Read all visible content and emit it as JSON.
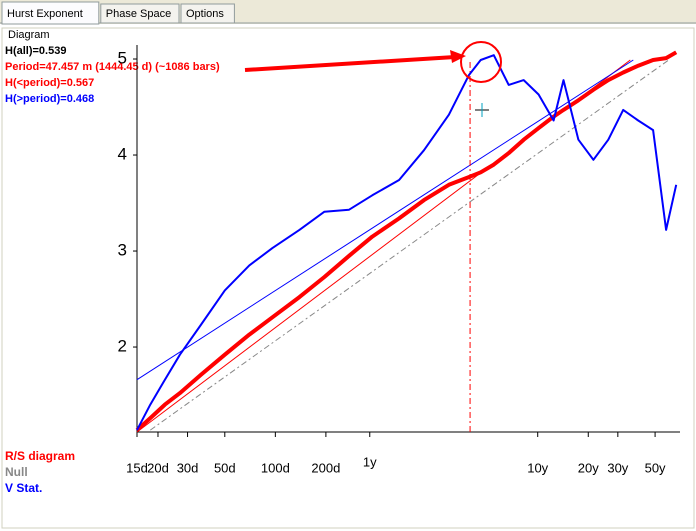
{
  "tabs": [
    "Hurst Exponent",
    "Phase Space",
    "Options"
  ],
  "group_label": "Diagram",
  "stats": [
    {
      "text": "H(all)=0.539",
      "color": "#000000"
    },
    {
      "text": "Period=47.457 m (1444.45 d) (~1086 bars)",
      "color": "#ff0000"
    },
    {
      "text": "H(<period)=0.567",
      "color": "#ff0000"
    },
    {
      "text": "H(>period)=0.468",
      "color": "#0000ff"
    }
  ],
  "chart_data": {
    "type": "line",
    "xscale": "log",
    "xlim": [
      15,
      25700
    ],
    "ylim": [
      1.115,
      5.146
    ],
    "yticks": [
      2,
      3,
      4,
      5
    ],
    "xticks": [
      15,
      20,
      30,
      50,
      100,
      200,
      {
        "value": 365,
        "label": "1y"
      },
      {
        "value": 3652,
        "label": "10y"
      },
      {
        "value": 7305,
        "label": "20y"
      },
      {
        "value": 10957,
        "label": "30y"
      },
      {
        "value": 18262,
        "label": "50y"
      }
    ],
    "xtick_labels": [
      "15d",
      "20d",
      "30d",
      "50d",
      "100d",
      "200d"
    ],
    "period_days": 1444.45,
    "x": [
      15,
      18,
      22,
      27,
      36,
      50,
      70,
      96,
      139,
      196,
      275,
      378,
      546,
      768,
      1081,
      1420,
      1672,
      2000,
      2455,
      3013,
      3698,
      4539,
      5200,
      6383,
      7834,
      9616,
      11800,
      14490,
      17780,
      21230,
      24380
    ],
    "series": [
      {
        "name": "R/S diagram",
        "color": "#ff0000",
        "width": 4,
        "values": [
          1.135,
          1.26,
          1.4,
          1.52,
          1.71,
          1.92,
          2.13,
          2.31,
          2.52,
          2.73,
          2.95,
          3.15,
          3.34,
          3.53,
          3.69,
          3.77,
          3.82,
          3.9,
          4.02,
          4.16,
          4.28,
          4.4,
          4.47,
          4.57,
          4.68,
          4.78,
          4.86,
          4.93,
          4.99,
          5.01,
          5.07
        ]
      },
      {
        "name": "V Stat.",
        "color": "#0000ff",
        "width": 2,
        "values": [
          1.135,
          1.4,
          1.66,
          1.92,
          2.23,
          2.59,
          2.85,
          3.03,
          3.22,
          3.41,
          3.43,
          3.58,
          3.74,
          4.05,
          4.42,
          4.83,
          4.99,
          5.04,
          4.73,
          4.78,
          4.63,
          4.36,
          4.78,
          4.16,
          3.95,
          4.16,
          4.47,
          4.36,
          4.26,
          3.22,
          3.69
        ]
      }
    ],
    "null_line": {
      "name": "Null",
      "color": "#888888",
      "x": [
        18,
        22000
      ],
      "values": [
        1.135,
        4.99
      ]
    },
    "fit_lines": [
      {
        "color": "#ff0000",
        "x": [
          15,
          13000
        ],
        "values": [
          1.115,
          4.99
        ]
      },
      {
        "color": "#0000ff",
        "x": [
          15,
          13550
        ],
        "values": [
          1.66,
          4.99
        ]
      }
    ]
  }
}
